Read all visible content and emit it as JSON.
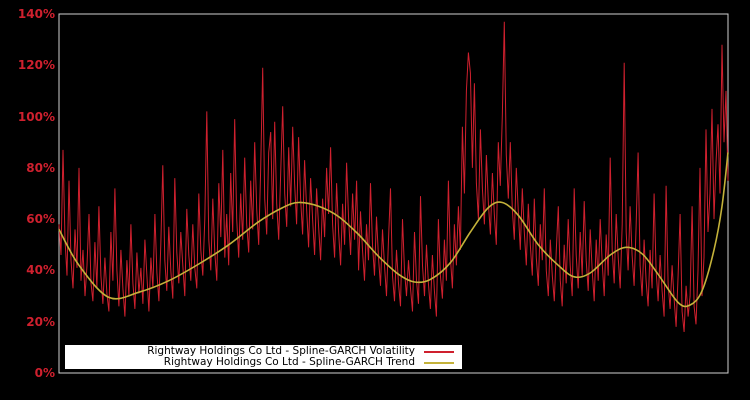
{
  "window": {
    "background": "#000000"
  },
  "axes": {
    "edge_color": "#d0d0d0",
    "tick_label_color": "#cf202e"
  },
  "legend": {
    "background": "#ffffff",
    "text_color": "#000000",
    "position": "bottom-left"
  },
  "chart_data": {
    "type": "line",
    "title": "",
    "xlabel": "",
    "ylabel": "",
    "ylim": [
      0,
      140
    ],
    "grid": false,
    "y_tick_values": [
      0,
      20,
      40,
      60,
      80,
      100,
      120,
      140
    ],
    "y_tick_labels": [
      "0%",
      "20%",
      "40%",
      "60%",
      "80%",
      "100%",
      "120%",
      "140%"
    ],
    "n_points": 336,
    "series": [
      {
        "name": "Rightway Holdings Co Ltd - Spline-GARCH Volatility",
        "color": "#cf202e",
        "style": "spiky-line",
        "unit": "percent",
        "values": [
          58,
          46,
          87,
          52,
          38,
          75,
          44,
          33,
          56,
          41,
          80,
          36,
          48,
          30,
          42,
          62,
          35,
          28,
          51,
          33,
          65,
          38,
          27,
          45,
          31,
          24,
          55,
          36,
          72,
          40,
          26,
          48,
          33,
          22,
          44,
          30,
          58,
          35,
          25,
          47,
          31,
          41,
          27,
          52,
          38,
          24,
          45,
          33,
          62,
          39,
          28,
          50,
          81,
          44,
          32,
          57,
          40,
          29,
          76,
          47,
          35,
          55,
          42,
          30,
          64,
          46,
          36,
          58,
          41,
          33,
          70,
          48,
          38,
          60,
          102,
          52,
          40,
          68,
          47,
          36,
          74,
          53,
          87,
          45,
          62,
          42,
          78,
          55,
          99,
          60,
          45,
          70,
          52,
          84,
          58,
          47,
          75,
          56,
          90,
          64,
          50,
          80,
          119,
          68,
          54,
          86,
          94,
          60,
          98,
          66,
          52,
          78,
          104,
          70,
          57,
          88,
          65,
          96,
          74,
          58,
          92,
          68,
          54,
          83,
          64,
          49,
          76,
          60,
          46,
          72,
          57,
          44,
          68,
          53,
          80,
          62,
          88,
          58,
          45,
          74,
          55,
          42,
          66,
          50,
          82,
          60,
          46,
          70,
          52,
          75,
          40,
          63,
          48,
          36,
          58,
          44,
          74,
          50,
          38,
          61,
          45,
          34,
          56,
          42,
          30,
          52,
          72,
          38,
          28,
          48,
          35,
          26,
          60,
          40,
          30,
          44,
          33,
          24,
          55,
          36,
          27,
          69,
          42,
          30,
          50,
          35,
          25,
          46,
          32,
          22,
          60,
          38,
          29,
          52,
          36,
          75,
          45,
          33,
          58,
          42,
          65,
          48,
          96,
          70,
          110,
          125,
          117,
          80,
          113,
          74,
          60,
          95,
          72,
          58,
          85,
          66,
          54,
          78,
          62,
          50,
          90,
          73,
          100,
          137,
          85,
          68,
          90,
          64,
          52,
          80,
          63,
          48,
          72,
          55,
          42,
          66,
          50,
          38,
          68,
          45,
          34,
          58,
          44,
          72,
          40,
          30,
          52,
          38,
          28,
          48,
          65,
          36,
          26,
          50,
          35,
          60,
          42,
          30,
          72,
          46,
          33,
          55,
          38,
          67,
          44,
          32,
          56,
          40,
          28,
          52,
          36,
          60,
          43,
          30,
          54,
          38,
          84,
          48,
          35,
          62,
          45,
          33,
          58,
          121,
          55,
          40,
          65,
          46,
          34,
          57,
          86,
          42,
          30,
          52,
          36,
          26,
          48,
          33,
          70,
          40,
          28,
          46,
          32,
          22,
          73,
          35,
          25,
          42,
          29,
          18,
          38,
          62,
          24,
          16,
          34,
          22,
          30,
          65,
          26,
          19,
          40,
          80,
          30,
          45,
          95,
          55,
          70,
          103,
          60,
          82,
          97,
          70,
          128,
          90,
          110,
          75
        ]
      },
      {
        "name": "Rightway Holdings Co Ltd - Spline-GARCH Trend",
        "color": "#c4b23a",
        "style": "smooth-line",
        "unit": "percent",
        "anchor_indices": [
          0,
          10,
          25,
          40,
          55,
          70,
          85,
          100,
          112,
          120,
          130,
          140,
          150,
          160,
          170,
          178,
          186,
          196,
          206,
          215,
          222,
          230,
          240,
          250,
          258,
          266,
          276,
          284,
          292,
          300,
          310,
          316,
          322,
          328,
          332,
          335
        ],
        "anchor_values": [
          56,
          42,
          29.5,
          31.5,
          36,
          42.5,
          50,
          59,
          64.5,
          66.5,
          65,
          61,
          54,
          45.5,
          38.5,
          35.5,
          36.5,
          43,
          55,
          64.5,
          66.5,
          61.5,
          50,
          42,
          37.5,
          39,
          46,
          49,
          46.5,
          38.5,
          27.5,
          26.5,
          32,
          48,
          65,
          86
        ]
      }
    ]
  }
}
